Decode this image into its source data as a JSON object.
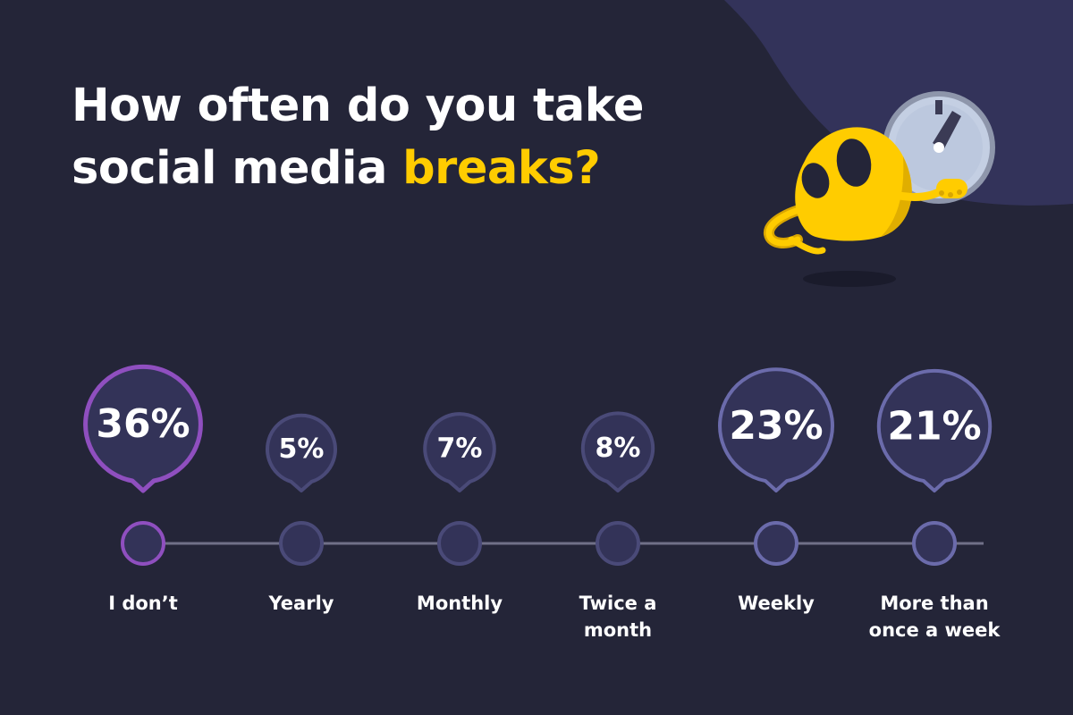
{
  "title": {
    "line1": "How often do you take",
    "line2_pre": "social media ",
    "line2_accent": "breaks?"
  },
  "colors": {
    "background": "#242538",
    "accent": "#ffcc00",
    "bubble_fill": "#333358",
    "bubble_highlight_stroke": "#8f4fbf",
    "bubble_small_stroke": "#4a4a78",
    "bubble_large_stroke": "#6b6bab",
    "timeline": "#707088",
    "label": "#ffffff",
    "blob": "#33335a"
  },
  "illustration": {
    "mascot": "yellow-ghost-mascot",
    "prop": "clock-icon"
  },
  "chart_data": {
    "type": "bubble-timeline",
    "categories": [
      "I don’t",
      "Yearly",
      "Monthly",
      "Twice a month",
      "Weekly",
      "More than once a week"
    ],
    "label_lines": [
      [
        "I don’t"
      ],
      [
        "Yearly"
      ],
      [
        "Monthly"
      ],
      [
        "Twice a",
        "month"
      ],
      [
        "Weekly"
      ],
      [
        "More than",
        "once a week"
      ]
    ],
    "values": [
      36,
      5,
      7,
      8,
      23,
      21
    ],
    "value_labels": [
      "36%",
      "5%",
      "7%",
      "8%",
      "23%",
      "21%"
    ],
    "unit": "%",
    "highlight": "I don’t"
  }
}
